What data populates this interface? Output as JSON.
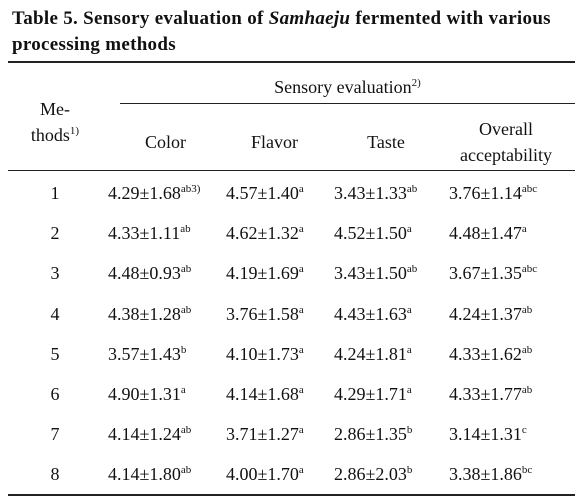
{
  "title": {
    "prefix": "Table 5. Sensory evaluation of",
    "italic": "Samhaeju",
    "suffix": "fermented with various processing methods"
  },
  "table": {
    "header": {
      "methods": "Me-thods",
      "methods_sup": "1)",
      "group": "Sensory evaluation",
      "group_sup": "2)",
      "columns": [
        "Color",
        "Flavor",
        "Taste",
        "Overall acceptability"
      ]
    },
    "rows": [
      {
        "method": "1",
        "cells": [
          {
            "value": "4.29±1.68",
            "sup": "ab3)"
          },
          {
            "value": "4.57±1.40",
            "sup": "a"
          },
          {
            "value": "3.43±1.33",
            "sup": "ab"
          },
          {
            "value": "3.76±1.14",
            "sup": "abc"
          }
        ]
      },
      {
        "method": "2",
        "cells": [
          {
            "value": "4.33±1.11",
            "sup": "ab"
          },
          {
            "value": "4.62±1.32",
            "sup": "a"
          },
          {
            "value": "4.52±1.50",
            "sup": "a"
          },
          {
            "value": "4.48±1.47",
            "sup": "a"
          }
        ]
      },
      {
        "method": "3",
        "cells": [
          {
            "value": "4.48±0.93",
            "sup": "ab"
          },
          {
            "value": "4.19±1.69",
            "sup": "a"
          },
          {
            "value": "3.43±1.50",
            "sup": "ab"
          },
          {
            "value": "3.67±1.35",
            "sup": "abc"
          }
        ]
      },
      {
        "method": "4",
        "cells": [
          {
            "value": "4.38±1.28",
            "sup": "ab"
          },
          {
            "value": "3.76±1.58",
            "sup": "a"
          },
          {
            "value": "4.43±1.63",
            "sup": "a"
          },
          {
            "value": "4.24±1.37",
            "sup": "ab"
          }
        ]
      },
      {
        "method": "5",
        "cells": [
          {
            "value": "3.57±1.43",
            "sup": "b"
          },
          {
            "value": "4.10±1.73",
            "sup": "a"
          },
          {
            "value": "4.24±1.81",
            "sup": "a"
          },
          {
            "value": "4.33±1.62",
            "sup": "ab"
          }
        ]
      },
      {
        "method": "6",
        "cells": [
          {
            "value": "4.90±1.31",
            "sup": "a"
          },
          {
            "value": "4.14±1.68",
            "sup": "a"
          },
          {
            "value": "4.29±1.71",
            "sup": "a"
          },
          {
            "value": "4.33±1.77",
            "sup": "ab"
          }
        ]
      },
      {
        "method": "7",
        "cells": [
          {
            "value": "4.14±1.24",
            "sup": "ab"
          },
          {
            "value": "3.71±1.27",
            "sup": "a"
          },
          {
            "value": "2.86±1.35",
            "sup": "b"
          },
          {
            "value": "3.14±1.31",
            "sup": "c"
          }
        ]
      },
      {
        "method": "8",
        "cells": [
          {
            "value": "4.14±1.80",
            "sup": "ab"
          },
          {
            "value": "4.00±1.70",
            "sup": "a"
          },
          {
            "value": "2.86±2.03",
            "sup": "b"
          },
          {
            "value": "3.38±1.86",
            "sup": "bc"
          }
        ]
      }
    ]
  }
}
